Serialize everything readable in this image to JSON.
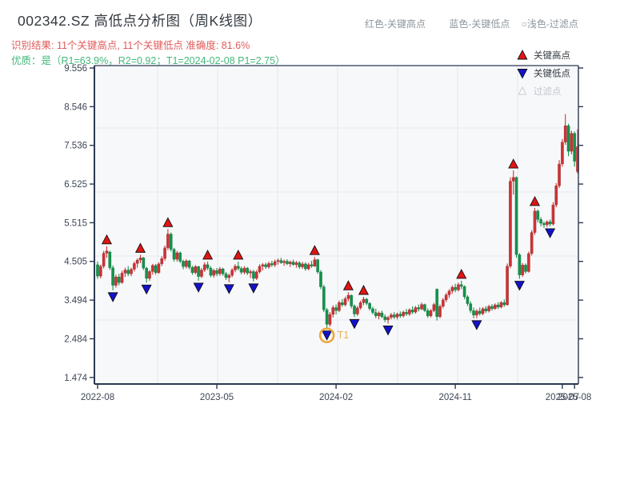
{
  "header": {
    "title": "002342.SZ 高低点分析图（周K线图）",
    "result_line": "识别结果: 11个关键高点, 11个关键低点  准确度: 81.6%",
    "quality_line": "优质：是（R1=63.9%，R2=0.92；T1=2024-02-08 P1=2.75）",
    "legend_right": [
      "红色-关键高点",
      "蓝色-关键低点",
      "○浅色-过滤点"
    ]
  },
  "legend": {
    "items": [
      {
        "label": "关键高点",
        "type": "high"
      },
      {
        "label": "关键低点",
        "type": "low"
      },
      {
        "label": "过滤点",
        "type": "filtered"
      }
    ]
  },
  "colors": {
    "up": "#cf3133",
    "down": "#11944a",
    "high_marker": "#e11414",
    "low_marker": "#1212cc",
    "filtered_marker": "#c7ccd2",
    "t1_ring": "#eda63e",
    "t1_text": "#e8b45a",
    "grid": "#e7e9f0",
    "plot_bg": "#f7f8fa",
    "spine": "#2b3950",
    "tick_text": "#3d4654",
    "result_text": "#e25b5b",
    "quality_text": "#44b87c",
    "header_right_text": "#8e979e",
    "legend_disabled": "#c2c7cd"
  },
  "chart_data": {
    "type": "candlestick",
    "title": "002342.SZ 高低点分析图（周K线图）",
    "frequency": "weekly",
    "grid": true,
    "y_ticks": [
      9.556,
      8.546,
      7.536,
      6.525,
      5.515,
      4.505,
      3.494,
      2.484,
      1.474
    ],
    "x_ticks": [
      {
        "label": "2022-08",
        "week": 0
      },
      {
        "label": "2023-05",
        "week": 39
      },
      {
        "label": "2024-02",
        "week": 78
      },
      {
        "label": "2024-11",
        "week": 117
      },
      {
        "label": "2025-07",
        "week": 152
      },
      {
        "label": "2025-08",
        "week": 156
      }
    ],
    "candles": [
      [
        4.42,
        4.5,
        4.05,
        4.12
      ],
      [
        4.12,
        4.42,
        4.06,
        4.38
      ],
      [
        4.38,
        4.78,
        4.32,
        4.72
      ],
      [
        4.72,
        4.9,
        4.6,
        4.78
      ],
      [
        4.75,
        4.78,
        4.28,
        4.34
      ],
      [
        4.34,
        4.4,
        3.75,
        3.88
      ],
      [
        3.88,
        4.16,
        3.82,
        4.1
      ],
      [
        4.1,
        4.18,
        3.88,
        3.95
      ],
      [
        3.95,
        4.26,
        3.92,
        4.2
      ],
      [
        4.2,
        4.34,
        4.1,
        4.28
      ],
      [
        4.28,
        4.38,
        4.12,
        4.18
      ],
      [
        4.18,
        4.34,
        4.12,
        4.3
      ],
      [
        4.3,
        4.5,
        4.24,
        4.45
      ],
      [
        4.45,
        4.58,
        4.34,
        4.54
      ],
      [
        4.54,
        4.68,
        4.46,
        4.6
      ],
      [
        4.6,
        4.62,
        4.28,
        4.33
      ],
      [
        4.33,
        4.36,
        3.95,
        4.06
      ],
      [
        4.06,
        4.28,
        4.0,
        4.24
      ],
      [
        4.24,
        4.44,
        4.16,
        4.4
      ],
      [
        4.4,
        4.44,
        4.16,
        4.21
      ],
      [
        4.21,
        4.48,
        4.18,
        4.44
      ],
      [
        4.44,
        4.64,
        4.38,
        4.58
      ],
      [
        4.58,
        4.92,
        4.52,
        4.86
      ],
      [
        4.86,
        5.35,
        4.8,
        5.22
      ],
      [
        5.22,
        5.26,
        4.76,
        4.82
      ],
      [
        4.82,
        4.86,
        4.5,
        4.56
      ],
      [
        4.56,
        4.78,
        4.5,
        4.73
      ],
      [
        4.73,
        4.76,
        4.46,
        4.51
      ],
      [
        4.51,
        4.55,
        4.3,
        4.37
      ],
      [
        4.37,
        4.56,
        4.32,
        4.52
      ],
      [
        4.52,
        4.54,
        4.3,
        4.35
      ],
      [
        4.35,
        4.39,
        4.16,
        4.21
      ],
      [
        4.21,
        4.41,
        4.17,
        4.37
      ],
      [
        4.37,
        4.39,
        4.0,
        4.11
      ],
      [
        4.11,
        4.33,
        4.07,
        4.28
      ],
      [
        4.28,
        4.48,
        4.23,
        4.42
      ],
      [
        4.42,
        4.5,
        4.28,
        4.33
      ],
      [
        4.33,
        4.38,
        4.09,
        4.14
      ],
      [
        4.14,
        4.31,
        4.08,
        4.27
      ],
      [
        4.27,
        4.33,
        4.12,
        4.18
      ],
      [
        4.18,
        4.36,
        4.13,
        4.31
      ],
      [
        4.31,
        4.34,
        4.13,
        4.18
      ],
      [
        4.18,
        4.23,
        4.02,
        4.08
      ],
      [
        4.08,
        4.19,
        3.96,
        4.14
      ],
      [
        4.14,
        4.33,
        4.09,
        4.28
      ],
      [
        4.28,
        4.43,
        4.22,
        4.38
      ],
      [
        4.38,
        4.5,
        4.27,
        4.32
      ],
      [
        4.32,
        4.37,
        4.17,
        4.22
      ],
      [
        4.22,
        4.38,
        4.17,
        4.33
      ],
      [
        4.33,
        4.36,
        4.15,
        4.2
      ],
      [
        4.2,
        4.29,
        4.07,
        4.24
      ],
      [
        4.24,
        4.28,
        3.98,
        4.06
      ],
      [
        4.06,
        4.28,
        4.02,
        4.23
      ],
      [
        4.23,
        4.43,
        4.19,
        4.38
      ],
      [
        4.38,
        4.46,
        4.27,
        4.42
      ],
      [
        4.42,
        4.47,
        4.31,
        4.36
      ],
      [
        4.36,
        4.5,
        4.31,
        4.45
      ],
      [
        4.45,
        4.52,
        4.36,
        4.41
      ],
      [
        4.41,
        4.55,
        4.36,
        4.5
      ],
      [
        4.5,
        4.58,
        4.42,
        4.53
      ],
      [
        4.53,
        4.6,
        4.44,
        4.47
      ],
      [
        4.47,
        4.55,
        4.39,
        4.51
      ],
      [
        4.51,
        4.56,
        4.41,
        4.44
      ],
      [
        4.44,
        4.53,
        4.36,
        4.49
      ],
      [
        4.49,
        4.55,
        4.39,
        4.42
      ],
      [
        4.42,
        4.52,
        4.34,
        4.47
      ],
      [
        4.47,
        4.51,
        4.31,
        4.36
      ],
      [
        4.36,
        4.49,
        4.31,
        4.44
      ],
      [
        4.44,
        4.48,
        4.26,
        4.31
      ],
      [
        4.31,
        4.47,
        4.27,
        4.42
      ],
      [
        4.42,
        4.52,
        4.34,
        4.38
      ],
      [
        4.38,
        4.62,
        4.36,
        4.55
      ],
      [
        4.55,
        4.57,
        4.18,
        4.23
      ],
      [
        4.23,
        4.28,
        3.78,
        3.84
      ],
      [
        3.84,
        3.89,
        3.18,
        3.24
      ],
      [
        3.24,
        3.29,
        2.75,
        2.86
      ],
      [
        2.86,
        3.18,
        2.8,
        3.12
      ],
      [
        3.12,
        3.36,
        3.04,
        3.3
      ],
      [
        3.3,
        3.38,
        3.12,
        3.22
      ],
      [
        3.22,
        3.48,
        3.18,
        3.43
      ],
      [
        3.43,
        3.52,
        3.32,
        3.37
      ],
      [
        3.37,
        3.58,
        3.33,
        3.53
      ],
      [
        3.53,
        3.7,
        3.46,
        3.62
      ],
      [
        3.62,
        3.64,
        3.28,
        3.34
      ],
      [
        3.34,
        3.38,
        3.05,
        3.13
      ],
      [
        3.13,
        3.34,
        3.08,
        3.29
      ],
      [
        3.29,
        3.48,
        3.24,
        3.43
      ],
      [
        3.43,
        3.58,
        3.36,
        3.52
      ],
      [
        3.52,
        3.55,
        3.36,
        3.41
      ],
      [
        3.41,
        3.44,
        3.22,
        3.27
      ],
      [
        3.27,
        3.32,
        3.12,
        3.17
      ],
      [
        3.17,
        3.27,
        3.02,
        3.08
      ],
      [
        3.08,
        3.2,
        2.99,
        3.16
      ],
      [
        3.16,
        3.22,
        3.02,
        3.06
      ],
      [
        3.06,
        3.12,
        2.92,
        2.98
      ],
      [
        2.98,
        3.08,
        2.88,
        3.04
      ],
      [
        3.04,
        3.16,
        2.99,
        3.11
      ],
      [
        3.11,
        3.18,
        3.0,
        3.05
      ],
      [
        3.05,
        3.17,
        2.99,
        3.13
      ],
      [
        3.13,
        3.2,
        3.03,
        3.08
      ],
      [
        3.08,
        3.22,
        3.04,
        3.18
      ],
      [
        3.18,
        3.26,
        3.08,
        3.13
      ],
      [
        3.13,
        3.28,
        3.08,
        3.24
      ],
      [
        3.24,
        3.33,
        3.13,
        3.18
      ],
      [
        3.18,
        3.34,
        3.14,
        3.3
      ],
      [
        3.3,
        3.38,
        3.2,
        3.26
      ],
      [
        3.26,
        3.43,
        3.23,
        3.38
      ],
      [
        3.38,
        3.4,
        3.18,
        3.22
      ],
      [
        3.22,
        3.28,
        3.03,
        3.08
      ],
      [
        3.08,
        3.26,
        3.04,
        3.22
      ],
      [
        3.22,
        3.42,
        3.18,
        3.38
      ],
      [
        3.78,
        3.8,
        2.96,
        3.06
      ],
      [
        3.06,
        3.38,
        3.02,
        3.33
      ],
      [
        3.33,
        3.55,
        3.28,
        3.5
      ],
      [
        3.5,
        3.68,
        3.44,
        3.63
      ],
      [
        3.63,
        3.78,
        3.55,
        3.73
      ],
      [
        3.73,
        3.88,
        3.66,
        3.83
      ],
      [
        3.83,
        3.92,
        3.7,
        3.76
      ],
      [
        3.76,
        3.95,
        3.72,
        3.9
      ],
      [
        3.9,
        4.0,
        3.78,
        3.85
      ],
      [
        3.85,
        3.88,
        3.52,
        3.58
      ],
      [
        3.58,
        3.62,
        3.34,
        3.4
      ],
      [
        3.4,
        3.46,
        3.16,
        3.22
      ],
      [
        3.22,
        3.3,
        3.02,
        3.1
      ],
      [
        3.1,
        3.26,
        3.02,
        3.21
      ],
      [
        3.21,
        3.3,
        3.09,
        3.14
      ],
      [
        3.14,
        3.31,
        3.1,
        3.27
      ],
      [
        3.27,
        3.34,
        3.16,
        3.21
      ],
      [
        3.21,
        3.37,
        3.17,
        3.33
      ],
      [
        3.33,
        3.39,
        3.22,
        3.27
      ],
      [
        3.27,
        3.41,
        3.24,
        3.37
      ],
      [
        3.37,
        3.44,
        3.26,
        3.31
      ],
      [
        3.31,
        3.47,
        3.28,
        3.43
      ],
      [
        3.43,
        3.51,
        3.32,
        3.37
      ],
      [
        3.37,
        4.45,
        3.35,
        4.38
      ],
      [
        4.38,
        6.7,
        4.33,
        6.6
      ],
      [
        6.6,
        6.88,
        6.25,
        6.7
      ],
      [
        6.7,
        6.72,
        4.6,
        4.68
      ],
      [
        4.68,
        4.72,
        4.05,
        4.15
      ],
      [
        4.15,
        4.46,
        4.1,
        4.41
      ],
      [
        4.41,
        4.45,
        4.19,
        4.24
      ],
      [
        4.24,
        4.76,
        4.21,
        4.71
      ],
      [
        4.71,
        5.32,
        4.66,
        5.26
      ],
      [
        5.26,
        5.9,
        5.2,
        5.82
      ],
      [
        5.82,
        5.86,
        5.52,
        5.6
      ],
      [
        5.6,
        5.66,
        5.42,
        5.5
      ],
      [
        5.5,
        5.55,
        5.38,
        5.46
      ],
      [
        5.46,
        5.58,
        5.4,
        5.54
      ],
      [
        5.54,
        5.6,
        5.42,
        5.48
      ],
      [
        5.48,
        6.05,
        5.44,
        5.98
      ],
      [
        5.98,
        6.55,
        5.92,
        6.48
      ],
      [
        6.48,
        7.15,
        6.42,
        7.05
      ],
      [
        7.05,
        7.7,
        6.98,
        7.62
      ],
      [
        7.62,
        8.35,
        7.55,
        8.05
      ],
      [
        8.05,
        8.1,
        7.25,
        7.38
      ],
      [
        7.38,
        7.92,
        7.3,
        7.85
      ],
      [
        7.85,
        7.9,
        6.98,
        7.12
      ],
      [
        6.85,
        7.95,
        6.8,
        7.5
      ]
    ],
    "key_highs": [
      {
        "week": 3,
        "price": 4.9
      },
      {
        "week": 14,
        "price": 4.68
      },
      {
        "week": 23,
        "price": 5.35
      },
      {
        "week": 36,
        "price": 4.5
      },
      {
        "week": 46,
        "price": 4.5
      },
      {
        "week": 71,
        "price": 4.62
      },
      {
        "week": 82,
        "price": 3.7
      },
      {
        "week": 87,
        "price": 3.58
      },
      {
        "week": 119,
        "price": 4.0
      },
      {
        "week": 136,
        "price": 6.88
      },
      {
        "week": 143,
        "price": 5.9
      }
    ],
    "key_lows": [
      {
        "week": 5,
        "price": 3.75
      },
      {
        "week": 16,
        "price": 3.95
      },
      {
        "week": 33,
        "price": 4.0
      },
      {
        "week": 43,
        "price": 3.96
      },
      {
        "week": 51,
        "price": 3.98
      },
      {
        "week": 75,
        "price": 2.75
      },
      {
        "week": 84,
        "price": 3.05
      },
      {
        "week": 95,
        "price": 2.88
      },
      {
        "week": 124,
        "price": 3.02
      },
      {
        "week": 138,
        "price": 4.05
      },
      {
        "week": 148,
        "price": 5.42
      }
    ],
    "t1": {
      "week": 75,
      "price": 2.75,
      "label": "T1",
      "date": "2024-02-08"
    }
  }
}
